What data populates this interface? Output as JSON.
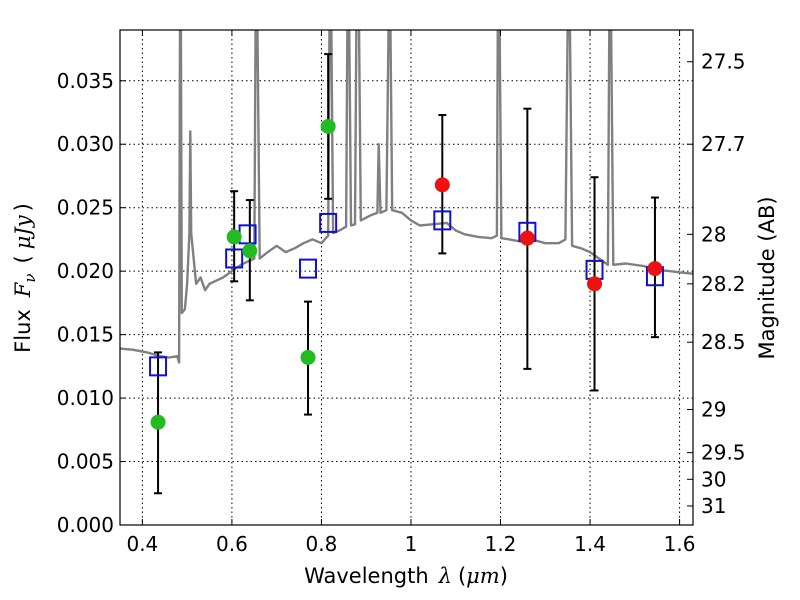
{
  "chart_data": {
    "type": "scatter",
    "xlabel": "Wavelength",
    "xlabel_symbol": "λ",
    "xlabel_unit": "μm",
    "ylabel": "Flux",
    "ylabel_symbol": "F",
    "ylabel_subscript": "ν",
    "ylabel_unit": "μJy",
    "y2label": "Magnitude (AB)",
    "xlim": [
      0.35,
      1.63
    ],
    "ylim": [
      0.0,
      0.039
    ],
    "grid": true,
    "x_ticks": [
      {
        "value": 0.4,
        "label": "0.4"
      },
      {
        "value": 0.6,
        "label": "0.6"
      },
      {
        "value": 0.8,
        "label": "0.8"
      },
      {
        "value": 1.0,
        "label": "1"
      },
      {
        "value": 1.2,
        "label": "1.2"
      },
      {
        "value": 1.4,
        "label": "1.4"
      },
      {
        "value": 1.6,
        "label": "1.6"
      }
    ],
    "y_ticks": [
      {
        "value": 0.0,
        "label": "0.000"
      },
      {
        "value": 0.005,
        "label": "0.005"
      },
      {
        "value": 0.01,
        "label": "0.010"
      },
      {
        "value": 0.015,
        "label": "0.015"
      },
      {
        "value": 0.02,
        "label": "0.020"
      },
      {
        "value": 0.025,
        "label": "0.025"
      },
      {
        "value": 0.03,
        "label": "0.030"
      },
      {
        "value": 0.035,
        "label": "0.035"
      }
    ],
    "y2_ticks": [
      {
        "flux": 0.0365,
        "label": "27.5"
      },
      {
        "flux": 0.03,
        "label": "27.7"
      },
      {
        "flux": 0.0229,
        "label": "28"
      },
      {
        "flux": 0.019,
        "label": "28.2"
      },
      {
        "flux": 0.0144,
        "label": "28.5"
      },
      {
        "flux": 0.0091,
        "label": "29"
      },
      {
        "flux": 0.0057,
        "label": "29.5"
      },
      {
        "flux": 0.0036,
        "label": "30"
      },
      {
        "flux": 0.0015,
        "label": "31"
      }
    ],
    "spectrum_series": {
      "name": "model spectrum",
      "color": "#808080",
      "points": [
        [
          0.35,
          0.0139
        ],
        [
          0.38,
          0.0138
        ],
        [
          0.41,
          0.0136
        ],
        [
          0.44,
          0.0133
        ],
        [
          0.46,
          0.0132
        ],
        [
          0.478,
          0.0133
        ],
        [
          0.482,
          0.0128
        ],
        [
          0.484,
          0.0395
        ],
        [
          0.486,
          0.0395
        ],
        [
          0.488,
          0.0167
        ],
        [
          0.495,
          0.017
        ],
        [
          0.5,
          0.019
        ],
        [
          0.505,
          0.023
        ],
        [
          0.507,
          0.031
        ],
        [
          0.509,
          0.023
        ],
        [
          0.52,
          0.019
        ],
        [
          0.53,
          0.0195
        ],
        [
          0.54,
          0.0185
        ],
        [
          0.55,
          0.019
        ],
        [
          0.58,
          0.0195
        ],
        [
          0.6,
          0.02
        ],
        [
          0.62,
          0.0205
        ],
        [
          0.65,
          0.021
        ],
        [
          0.653,
          0.0395
        ],
        [
          0.657,
          0.0395
        ],
        [
          0.662,
          0.021
        ],
        [
          0.68,
          0.0215
        ],
        [
          0.7,
          0.022
        ],
        [
          0.72,
          0.0215
        ],
        [
          0.74,
          0.0218
        ],
        [
          0.76,
          0.0222
        ],
        [
          0.78,
          0.0225
        ],
        [
          0.8,
          0.0222
        ],
        [
          0.815,
          0.0228
        ],
        [
          0.818,
          0.0395
        ],
        [
          0.822,
          0.0395
        ],
        [
          0.826,
          0.023
        ],
        [
          0.84,
          0.0232
        ],
        [
          0.855,
          0.0235
        ],
        [
          0.858,
          0.0395
        ],
        [
          0.862,
          0.0395
        ],
        [
          0.866,
          0.0236
        ],
        [
          0.875,
          0.0237
        ],
        [
          0.878,
          0.0395
        ],
        [
          0.884,
          0.0395
        ],
        [
          0.888,
          0.024
        ],
        [
          0.91,
          0.0244
        ],
        [
          0.925,
          0.0246
        ],
        [
          0.928,
          0.03
        ],
        [
          0.932,
          0.0246
        ],
        [
          0.945,
          0.0248
        ],
        [
          0.95,
          0.0395
        ],
        [
          0.954,
          0.0395
        ],
        [
          0.958,
          0.0248
        ],
        [
          0.98,
          0.0246
        ],
        [
          1.0,
          0.024
        ],
        [
          1.02,
          0.0236
        ],
        [
          1.05,
          0.0237
        ],
        [
          1.08,
          0.0238
        ],
        [
          1.1,
          0.0232
        ],
        [
          1.12,
          0.0229
        ],
        [
          1.15,
          0.0227
        ],
        [
          1.18,
          0.0226
        ],
        [
          1.192,
          0.0228
        ],
        [
          1.194,
          0.0395
        ],
        [
          1.198,
          0.0395
        ],
        [
          1.202,
          0.0226
        ],
        [
          1.22,
          0.0225
        ],
        [
          1.25,
          0.0223
        ],
        [
          1.28,
          0.0224
        ],
        [
          1.3,
          0.0222
        ],
        [
          1.33,
          0.0222
        ],
        [
          1.345,
          0.0225
        ],
        [
          1.35,
          0.0395
        ],
        [
          1.355,
          0.0395
        ],
        [
          1.36,
          0.022
        ],
        [
          1.38,
          0.0218
        ],
        [
          1.4,
          0.0215
        ],
        [
          1.42,
          0.021
        ],
        [
          1.44,
          0.0205
        ],
        [
          1.443,
          0.0395
        ],
        [
          1.447,
          0.0395
        ],
        [
          1.452,
          0.0205
        ],
        [
          1.48,
          0.0206
        ],
        [
          1.5,
          0.0205
        ],
        [
          1.52,
          0.0204
        ],
        [
          1.55,
          0.0201
        ],
        [
          1.58,
          0.02
        ],
        [
          1.6,
          0.0199
        ],
        [
          1.63,
          0.0198
        ]
      ]
    },
    "model_series": {
      "name": "synthetic photometry",
      "marker": "open-square",
      "color": "#1010d0",
      "points": [
        [
          0.435,
          0.0125
        ],
        [
          0.605,
          0.021
        ],
        [
          0.635,
          0.0229
        ],
        [
          0.77,
          0.0202
        ],
        [
          0.815,
          0.0238
        ],
        [
          1.07,
          0.024
        ],
        [
          1.26,
          0.0231
        ],
        [
          1.41,
          0.0201
        ],
        [
          1.545,
          0.0196
        ]
      ]
    },
    "observed_series": [
      {
        "name": "observed (green)",
        "color": "#22bb22",
        "points": [
          {
            "x": 0.435,
            "y": 0.0081,
            "err_low": 0.0025,
            "err_high": 0.0136
          },
          {
            "x": 0.605,
            "y": 0.0227,
            "err_low": 0.0192,
            "err_high": 0.0263
          },
          {
            "x": 0.64,
            "y": 0.0216,
            "err_low": 0.0177,
            "err_high": 0.0256
          },
          {
            "x": 0.77,
            "y": 0.0132,
            "err_low": 0.0087,
            "err_high": 0.0176
          },
          {
            "x": 0.815,
            "y": 0.0314,
            "err_low": 0.0257,
            "err_high": 0.0371
          }
        ]
      },
      {
        "name": "observed (red)",
        "color": "#ee1111",
        "points": [
          {
            "x": 1.07,
            "y": 0.0268,
            "err_low": 0.0214,
            "err_high": 0.0323
          },
          {
            "x": 1.26,
            "y": 0.0226,
            "err_low": 0.0123,
            "err_high": 0.0328
          },
          {
            "x": 1.41,
            "y": 0.019,
            "err_low": 0.0106,
            "err_high": 0.0274
          },
          {
            "x": 1.545,
            "y": 0.0202,
            "err_low": 0.0148,
            "err_high": 0.0258
          }
        ]
      }
    ]
  }
}
